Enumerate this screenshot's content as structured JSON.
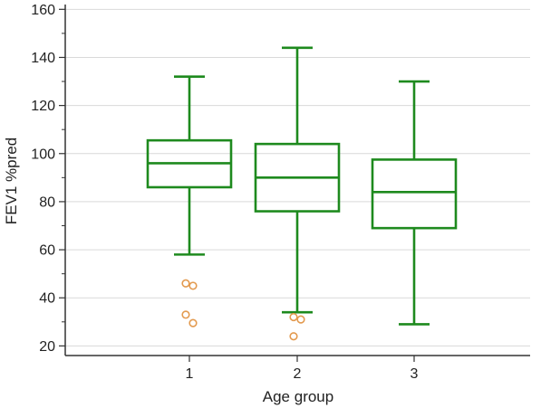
{
  "chart_data": {
    "type": "box",
    "xlabel": "Age group",
    "ylabel": "FEV1 %pred",
    "ylim": [
      16,
      162
    ],
    "yticks": [
      20,
      40,
      60,
      80,
      100,
      120,
      140,
      160
    ],
    "categories": [
      "1",
      "2",
      "3"
    ],
    "boxes": [
      {
        "category": "1",
        "whisker_low": 58,
        "q1": 86,
        "median": 96,
        "q3": 105.5,
        "whisker_high": 132,
        "outliers": [
          46,
          45,
          33,
          29.5
        ]
      },
      {
        "category": "2",
        "whisker_low": 34,
        "q1": 76,
        "median": 90,
        "q3": 104,
        "whisker_high": 144,
        "outliers": [
          32,
          31,
          24
        ]
      },
      {
        "category": "3",
        "whisker_low": 29,
        "q1": 69,
        "median": 84,
        "q3": 97.5,
        "whisker_high": 130,
        "outliers": []
      }
    ],
    "grid": true,
    "colors": {
      "box": "#1e8a1e",
      "outlier": "#e39a4f",
      "grid": "#d9d9d9",
      "axis": "#333333"
    }
  }
}
